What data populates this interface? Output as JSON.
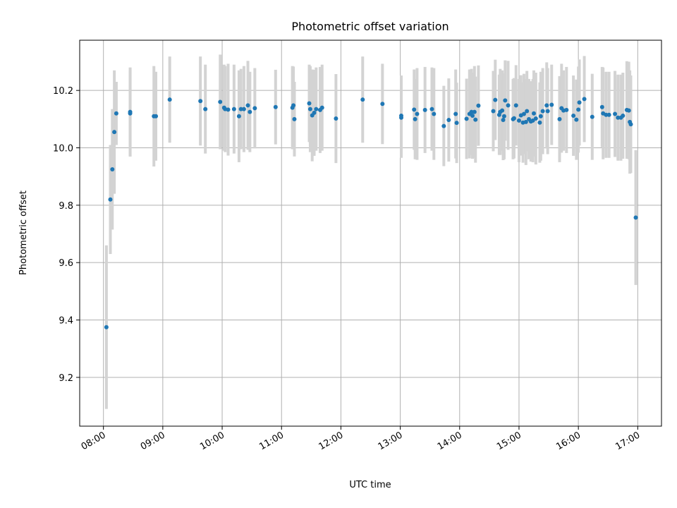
{
  "chart_data": {
    "type": "scatter",
    "title": "Photometric offset variation",
    "xlabel": "UTC time",
    "ylabel": "Photometric offset",
    "xlim": [
      "07:36",
      "17:24"
    ],
    "ylim": [
      9.03,
      10.375
    ],
    "grid": true,
    "x_ticks": [
      "08:00",
      "09:00",
      "10:00",
      "11:00",
      "12:00",
      "13:00",
      "14:00",
      "15:00",
      "16:00",
      "17:00"
    ],
    "y_ticks": [
      9.2,
      9.4,
      9.6,
      9.8,
      10.0,
      10.2
    ],
    "y_tick_labels": [
      "9.2",
      "9.4",
      "9.6",
      "9.8",
      "10.0",
      "10.2"
    ],
    "series": [
      {
        "color": "#1f77b4",
        "errorbar_color": "#d3d3d3",
        "x": [
          "08:03",
          "08:07",
          "08:09",
          "08:11",
          "08:13",
          "08:27",
          "08:27",
          "08:51",
          "08:53",
          "09:07",
          "09:38",
          "09:43",
          "09:58",
          "10:02",
          "10:03",
          "10:06",
          "10:12",
          "10:17",
          "10:19",
          "10:22",
          "10:26",
          "10:28",
          "10:33",
          "10:54",
          "11:11",
          "11:12",
          "11:13",
          "11:28",
          "11:29",
          "11:31",
          "11:33",
          "11:35",
          "11:39",
          "11:41",
          "11:55",
          "12:22",
          "12:42",
          "13:01",
          "13:01",
          "13:14",
          "13:15",
          "13:17",
          "13:25",
          "13:32",
          "13:34",
          "13:44",
          "13:49",
          "13:56",
          "13:57",
          "14:07",
          "14:10",
          "14:12",
          "14:13",
          "14:15",
          "14:16",
          "14:19",
          "14:34",
          "14:36",
          "14:40",
          "14:41",
          "14:43",
          "14:44",
          "14:45",
          "14:46",
          "14:49",
          "14:54",
          "14:55",
          "14:57",
          "15:00",
          "15:02",
          "15:04",
          "15:05",
          "15:07",
          "15:08",
          "15:10",
          "15:12",
          "15:14",
          "15:15",
          "15:17",
          "15:21",
          "15:22",
          "15:24",
          "15:28",
          "15:29",
          "15:33",
          "15:41",
          "15:43",
          "15:45",
          "15:48",
          "15:55",
          "15:58",
          "16:00",
          "16:01",
          "16:06",
          "16:14",
          "16:24",
          "16:25",
          "16:28",
          "16:31",
          "16:37",
          "16:40",
          "16:43",
          "16:45",
          "16:49",
          "16:51",
          "16:52",
          "16:53",
          "16:58"
        ],
        "y": [
          9.375,
          9.82,
          9.925,
          10.055,
          10.12,
          10.125,
          10.12,
          10.11,
          10.11,
          10.168,
          10.163,
          10.135,
          10.16,
          10.14,
          10.135,
          10.133,
          10.135,
          10.11,
          10.135,
          10.135,
          10.148,
          10.125,
          10.138,
          10.142,
          10.14,
          10.148,
          10.1,
          10.155,
          10.135,
          10.113,
          10.122,
          10.135,
          10.132,
          10.14,
          10.102,
          10.168,
          10.153,
          10.112,
          10.105,
          10.133,
          10.1,
          10.118,
          10.132,
          10.135,
          10.118,
          10.076,
          10.097,
          10.118,
          10.087,
          10.101,
          10.118,
          10.125,
          10.112,
          10.125,
          10.098,
          10.147,
          10.128,
          10.167,
          10.115,
          10.125,
          10.13,
          10.097,
          10.11,
          10.165,
          10.148,
          10.1,
          10.103,
          10.148,
          10.095,
          10.113,
          10.088,
          10.118,
          10.09,
          10.128,
          10.1,
          10.092,
          10.095,
          10.12,
          10.102,
          10.088,
          10.11,
          10.128,
          10.148,
          10.128,
          10.15,
          10.1,
          10.138,
          10.13,
          10.132,
          10.112,
          10.098,
          10.133,
          10.158,
          10.17,
          10.108,
          10.142,
          10.12,
          10.115,
          10.115,
          10.118,
          10.105,
          10.105,
          10.112,
          10.132,
          10.13,
          10.09,
          10.082,
          9.757
        ],
        "yerr": [
          0.285,
          0.19,
          0.21,
          0.215,
          0.11,
          0.155,
          0.15,
          0.175,
          0.155,
          0.15,
          0.155,
          0.155,
          0.165,
          0.15,
          0.15,
          0.16,
          0.155,
          0.16,
          0.14,
          0.15,
          0.155,
          0.14,
          0.14,
          0.13,
          0.145,
          0.135,
          0.13,
          0.135,
          0.15,
          0.16,
          0.15,
          0.145,
          0.15,
          0.15,
          0.155,
          0.15,
          0.14,
          0.14,
          0.14,
          0.14,
          0.14,
          0.16,
          0.15,
          0.145,
          0.16,
          0.14,
          0.145,
          0.155,
          0.14,
          0.14,
          0.155,
          0.15,
          0.15,
          0.16,
          0.15,
          0.14,
          0.14,
          0.14,
          0.14,
          0.15,
          0.14,
          0.14,
          0.15,
          0.14,
          0.155,
          0.14,
          0.14,
          0.14,
          0.145,
          0.14,
          0.14,
          0.14,
          0.15,
          0.14,
          0.14,
          0.14,
          0.145,
          0.15,
          0.16,
          0.14,
          0.155,
          0.15,
          0.15,
          0.15,
          0.14,
          0.15,
          0.155,
          0.14,
          0.15,
          0.14,
          0.14,
          0.15,
          0.15,
          0.15,
          0.15,
          0.14,
          0.16,
          0.15,
          0.15,
          0.15,
          0.15,
          0.15,
          0.15,
          0.17,
          0.17,
          0.18,
          0.17,
          0.235
        ]
      }
    ]
  }
}
